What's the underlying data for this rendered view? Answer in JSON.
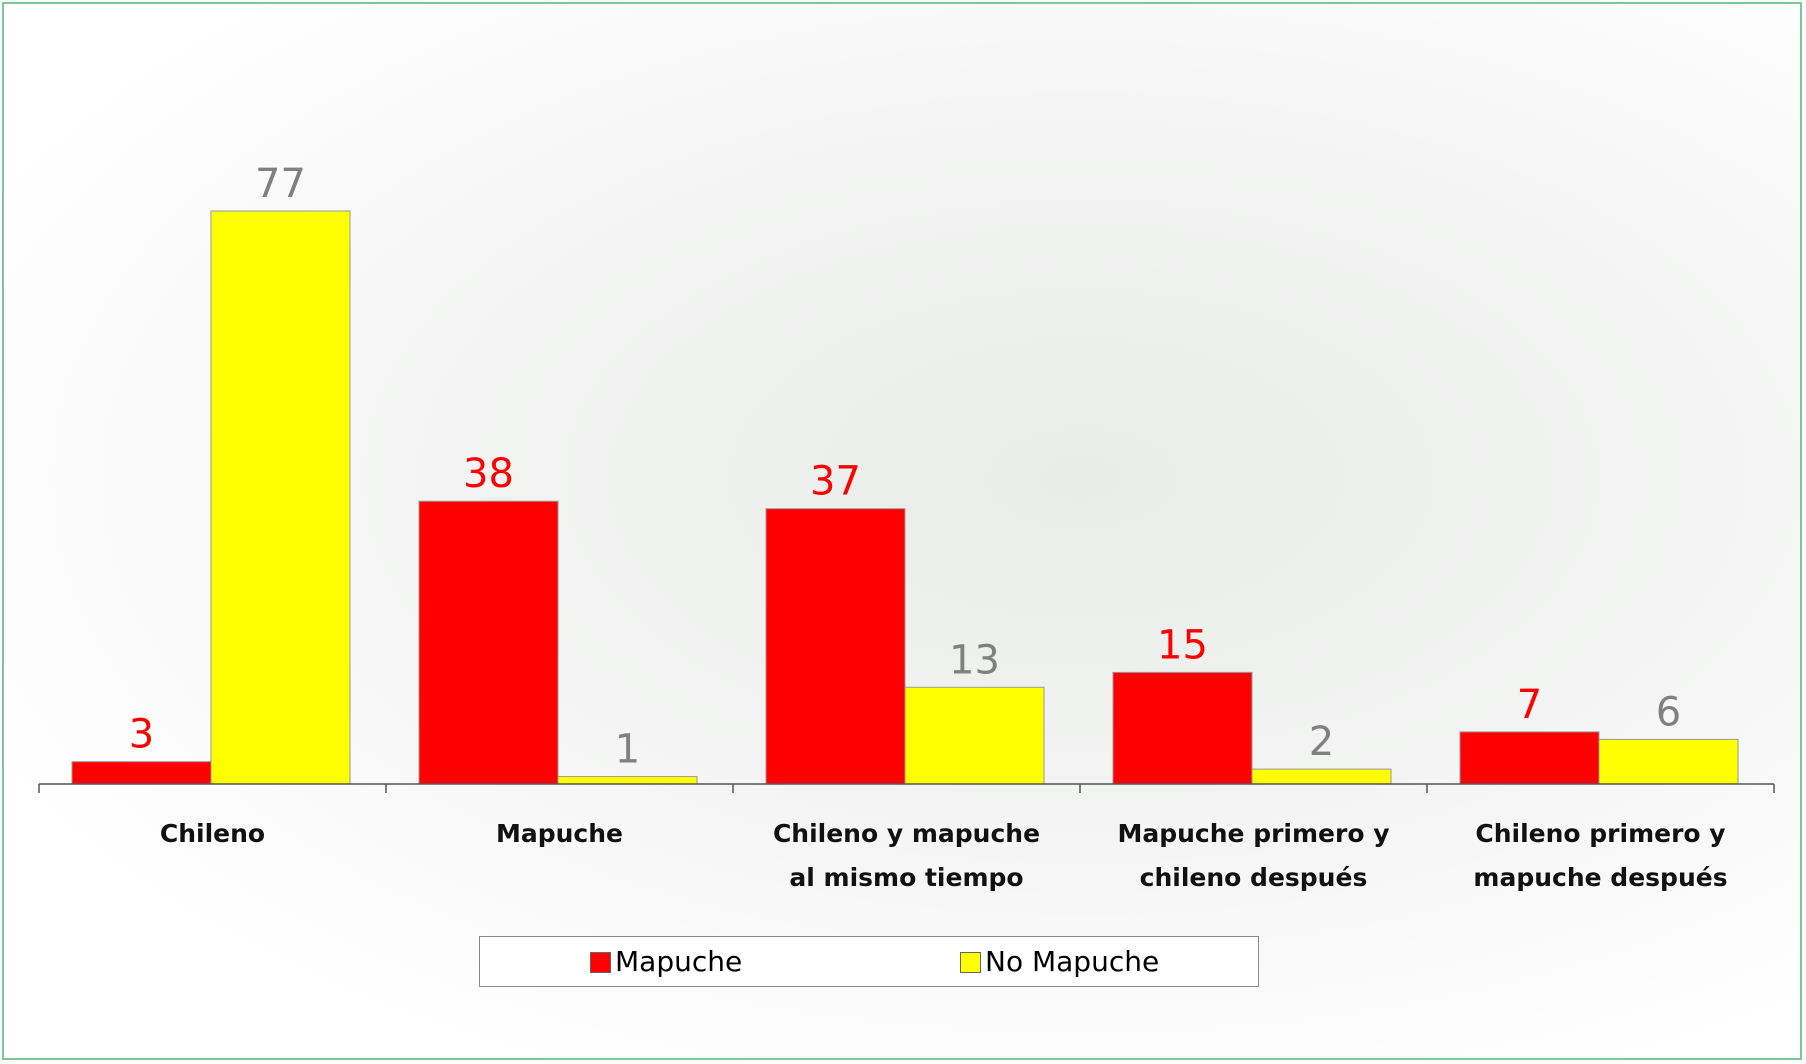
{
  "chart_data": {
    "type": "bar",
    "categories": [
      "Chileno",
      "Mapuche",
      "Chileno y mapuche al mismo tiempo",
      "Mapuche primero y chileno después",
      "Chileno primero y mapuche después"
    ],
    "series": [
      {
        "name": "Mapuche",
        "color": "#ff0000",
        "label_color": "#ff0000",
        "values": [
          3,
          38,
          37,
          15,
          7
        ]
      },
      {
        "name": "No Mapuche",
        "color": "#ffff00",
        "label_color": "#808080",
        "values": [
          77,
          1,
          13,
          2,
          6
        ]
      }
    ]
  }
}
